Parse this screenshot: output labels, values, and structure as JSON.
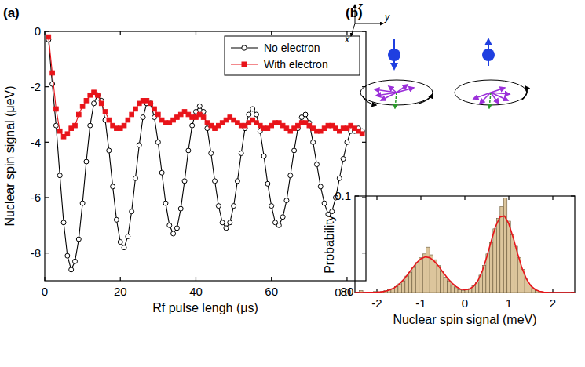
{
  "chart_data": [
    {
      "type": "line",
      "title": "(a)",
      "x_label": "Rf pulse lengh (μs)",
      "y_label": "Nuclear spin signal (μeV)",
      "xlim": [
        0,
        85
      ],
      "xticks": [
        0,
        20,
        40,
        60,
        80
      ],
      "ylim": [
        -9,
        0
      ],
      "yticks": [
        -8,
        -6,
        -4,
        -2,
        0
      ],
      "grid": false,
      "legend": "upper right",
      "x": [
        1,
        2,
        3,
        4,
        5,
        6,
        7,
        8,
        9,
        10,
        11,
        12,
        13,
        14,
        15,
        16,
        17,
        18,
        19,
        20,
        21,
        22,
        23,
        24,
        25,
        26,
        27,
        28,
        29,
        30,
        31,
        32,
        33,
        34,
        35,
        36,
        37,
        38,
        39,
        40,
        41,
        42,
        43,
        44,
        45,
        46,
        47,
        48,
        49,
        50,
        51,
        52,
        53,
        54,
        55,
        56,
        57,
        58,
        59,
        60,
        61,
        62,
        63,
        64,
        65,
        66,
        67,
        68,
        69,
        70,
        71,
        72,
        73,
        74,
        75,
        76,
        77,
        78,
        79,
        80,
        81,
        82,
        83,
        84
      ],
      "series": [
        {
          "name": "No electron",
          "color": "#000000",
          "marker": "circle",
          "line_style": "solid",
          "values": [
            -0.3,
            -1.9,
            -3.4,
            -5.2,
            -6.9,
            -8.1,
            -8.6,
            -8.3,
            -7.5,
            -6.2,
            -4.7,
            -3.4,
            -2.6,
            -2.3,
            -2.5,
            -3.2,
            -4.3,
            -5.6,
            -6.8,
            -7.6,
            -7.8,
            -7.4,
            -6.5,
            -5.3,
            -4.1,
            -3.1,
            -2.6,
            -2.6,
            -3.1,
            -4.0,
            -5.1,
            -6.2,
            -7.0,
            -7.3,
            -7.1,
            -6.4,
            -5.4,
            -4.3,
            -3.4,
            -2.9,
            -2.7,
            -2.9,
            -3.5,
            -4.4,
            -5.4,
            -6.3,
            -6.9,
            -7.1,
            -6.9,
            -6.3,
            -5.4,
            -4.4,
            -3.5,
            -3.0,
            -2.8,
            -3.0,
            -3.6,
            -4.5,
            -5.5,
            -6.3,
            -6.9,
            -7.0,
            -6.7,
            -6.1,
            -5.2,
            -4.3,
            -3.5,
            -3.1,
            -3.0,
            -3.3,
            -4.0,
            -4.8,
            -5.6,
            -6.2,
            -6.6,
            -6.5,
            -6.0,
            -5.3,
            -4.6,
            -4.0,
            -3.6,
            -3.6,
            -3.5,
            -3.6
          ]
        },
        {
          "name": "With electron",
          "color": "#e8141a",
          "marker": "square",
          "line_style": "solid",
          "values": [
            -0.2,
            -1.5,
            -2.8,
            -3.6,
            -3.8,
            -3.7,
            -3.5,
            -3.4,
            -3.0,
            -2.7,
            -2.5,
            -2.3,
            -2.2,
            -2.3,
            -2.6,
            -2.9,
            -3.2,
            -3.4,
            -3.5,
            -3.5,
            -3.4,
            -3.2,
            -3.0,
            -2.8,
            -2.6,
            -2.5,
            -2.5,
            -2.6,
            -2.8,
            -3.0,
            -3.2,
            -3.3,
            -3.3,
            -3.2,
            -3.1,
            -3.0,
            -2.9,
            -3.0,
            -3.1,
            -3.1,
            -3.0,
            -3.1,
            -3.3,
            -3.4,
            -3.5,
            -3.4,
            -3.3,
            -3.2,
            -3.1,
            -3.2,
            -3.3,
            -3.4,
            -3.4,
            -3.3,
            -3.2,
            -3.3,
            -3.4,
            -3.5,
            -3.5,
            -3.4,
            -3.3,
            -3.3,
            -3.4,
            -3.5,
            -3.6,
            -3.5,
            -3.4,
            -3.3,
            -3.3,
            -3.4,
            -3.5,
            -3.6,
            -3.6,
            -3.5,
            -3.4,
            -3.4,
            -3.5,
            -3.6,
            -3.5,
            -3.5,
            -3.4,
            -3.5,
            -3.6,
            -3.7
          ]
        }
      ]
    },
    {
      "type": "histogram",
      "title": "(b)",
      "x_label": "Nuclear spin signal (meV)",
      "y_label": "Probability",
      "xlim": [
        -2.5,
        2.5
      ],
      "xticks": [
        -2,
        -1,
        0,
        1,
        2
      ],
      "ylim": [
        0,
        0.1
      ],
      "yticks": [
        {
          "value": 0,
          "label": "0.0"
        },
        {
          "value": 0.1,
          "label": "0.1"
        }
      ],
      "grid": false,
      "color": "#dcc59c",
      "bins": [
        -2.4,
        -2.32,
        -2.24,
        -2.16,
        -2.08,
        -2,
        -1.92,
        -1.84,
        -1.76,
        -1.68,
        -1.6,
        -1.52,
        -1.44,
        -1.36,
        -1.28,
        -1.2,
        -1.12,
        -1.04,
        -0.96,
        -0.88,
        -0.8,
        -0.72,
        -0.64,
        -0.56,
        -0.48,
        -0.4,
        -0.32,
        -0.24,
        -0.16,
        -0.08,
        0,
        0.08,
        0.16,
        0.24,
        0.32,
        0.4,
        0.48,
        0.56,
        0.64,
        0.72,
        0.8,
        0.88,
        0.96,
        1.04,
        1.12,
        1.2,
        1.28,
        1.36,
        1.44,
        1.52,
        1.6,
        1.68,
        1.76
      ],
      "counts": [
        0.002,
        0,
        0,
        0,
        0.001,
        0,
        0.001,
        0.002,
        0.003,
        0.004,
        0.006,
        0.009,
        0.012,
        0.017,
        0.021,
        0.026,
        0.031,
        0.036,
        0.04,
        0.047,
        0.039,
        0.034,
        0.028,
        0.022,
        0.016,
        0.012,
        0.008,
        0.005,
        0.003,
        0.002,
        0.003,
        0.004,
        0.007,
        0.011,
        0.018,
        0.028,
        0.04,
        0.052,
        0.066,
        0.077,
        0.089,
        0.098,
        0.074,
        0.06,
        0.048,
        0.036,
        0.024,
        0.014,
        0.008,
        0.004,
        0.002,
        0.001
      ],
      "fit": {
        "type": "line",
        "color": "#e8141a",
        "x": [
          -2.5,
          -2.4,
          -2.3,
          -2.2,
          -2.1,
          -2.0,
          -1.9,
          -1.8,
          -1.7,
          -1.6,
          -1.5,
          -1.4,
          -1.3,
          -1.2,
          -1.1,
          -1.0,
          -0.9,
          -0.8,
          -0.7,
          -0.6,
          -0.5,
          -0.4,
          -0.3,
          -0.2,
          -0.1,
          0,
          0.1,
          0.2,
          0.3,
          0.4,
          0.5,
          0.6,
          0.7,
          0.8,
          0.9,
          1.0,
          1.1,
          1.2,
          1.3,
          1.4,
          1.5,
          1.6,
          1.7,
          1.8,
          1.9,
          2.0,
          2.1,
          2.2,
          2.3,
          2.4,
          2.5
        ],
        "values": [
          0,
          0,
          0,
          0.0001,
          0.0001,
          0.0003,
          0.0007,
          0.0014,
          0.0028,
          0.005,
          0.0084,
          0.0131,
          0.0187,
          0.0249,
          0.0307,
          0.035,
          0.037,
          0.0361,
          0.0326,
          0.0274,
          0.0212,
          0.0152,
          0.0101,
          0.0062,
          0.0035,
          0.0029,
          0.0035,
          0.0064,
          0.0126,
          0.0228,
          0.037,
          0.0535,
          0.0687,
          0.0783,
          0.0793,
          0.0712,
          0.0568,
          0.0402,
          0.0253,
          0.0141,
          0.007,
          0.0031,
          0.0012,
          0.0004,
          0.0001,
          0,
          0,
          0,
          0,
          0,
          0
        ]
      },
      "inset_axis_labels": [
        "z",
        "y",
        "x"
      ]
    }
  ]
}
